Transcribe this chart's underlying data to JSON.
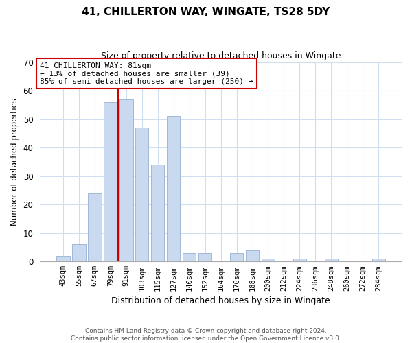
{
  "title": "41, CHILLERTON WAY, WINGATE, TS28 5DY",
  "subtitle": "Size of property relative to detached houses in Wingate",
  "xlabel": "Distribution of detached houses by size in Wingate",
  "ylabel": "Number of detached properties",
  "bar_labels": [
    "43sqm",
    "55sqm",
    "67sqm",
    "79sqm",
    "91sqm",
    "103sqm",
    "115sqm",
    "127sqm",
    "140sqm",
    "152sqm",
    "164sqm",
    "176sqm",
    "188sqm",
    "200sqm",
    "212sqm",
    "224sqm",
    "236sqm",
    "248sqm",
    "260sqm",
    "272sqm",
    "284sqm"
  ],
  "bar_values": [
    2,
    6,
    24,
    56,
    57,
    47,
    34,
    51,
    3,
    3,
    0,
    3,
    4,
    1,
    0,
    1,
    0,
    1,
    0,
    0,
    1
  ],
  "bar_color": "#c9d9f0",
  "bar_edge_color": "#a0b8d8",
  "ylim": [
    0,
    70
  ],
  "yticks": [
    0,
    10,
    20,
    30,
    40,
    50,
    60,
    70
  ],
  "vline_x": 3.5,
  "vline_color": "#cc0000",
  "annotation_text": "41 CHILLERTON WAY: 81sqm\n← 13% of detached houses are smaller (39)\n85% of semi-detached houses are larger (250) →",
  "annotation_box_color": "#ffffff",
  "annotation_box_edge": "#cc0000",
  "footer_line1": "Contains HM Land Registry data © Crown copyright and database right 2024.",
  "footer_line2": "Contains public sector information licensed under the Open Government Licence v3.0.",
  "background_color": "#ffffff",
  "grid_color": "#d0dff0"
}
